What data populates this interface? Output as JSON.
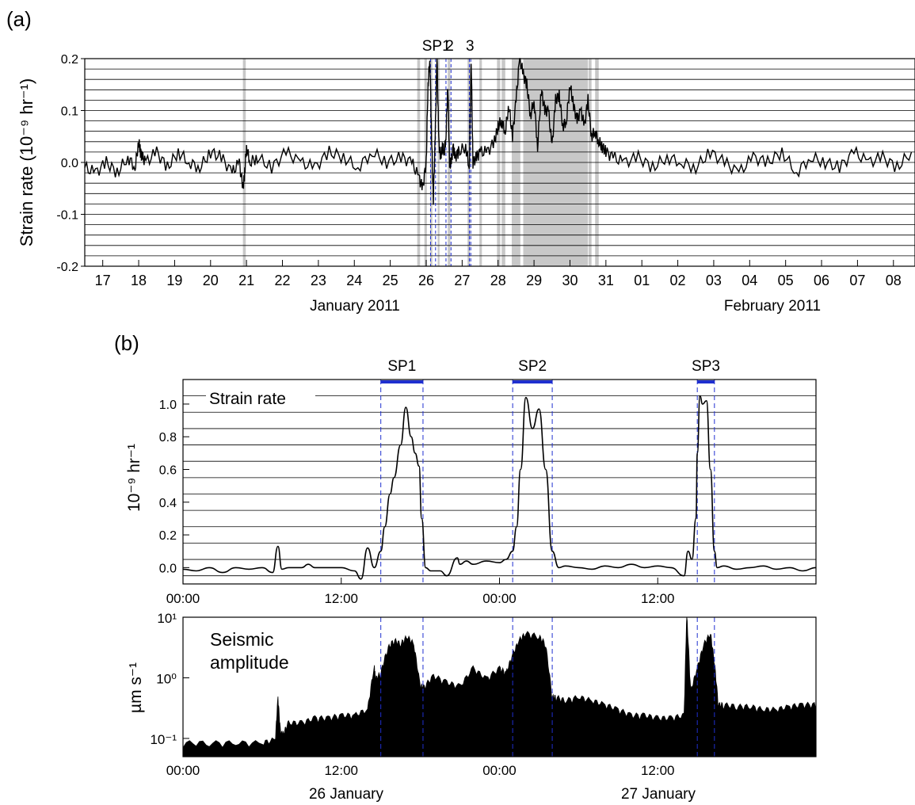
{
  "panels": {
    "a_label": "(a)",
    "b_label": "(b)"
  },
  "chart_data": [
    {
      "id": "panel-a",
      "type": "line",
      "ylabel": "Strain rate (10⁻⁹ hr⁻¹)",
      "ylim": [
        -0.2,
        0.2
      ],
      "yticks": [
        -0.2,
        -0.1,
        0.0,
        0.1,
        0.2
      ],
      "ytick_labels": [
        "-0.2",
        "-0.1",
        "0.0",
        "0.1",
        "0.2"
      ],
      "x_start_day": "2011-01-16T12:00",
      "xlim_days": [
        0,
        23.1
      ],
      "xtick_labels": [
        "17",
        "18",
        "19",
        "20",
        "21",
        "22",
        "23",
        "24",
        "25",
        "26",
        "27",
        "28",
        "29",
        "30",
        "31",
        "01",
        "02",
        "03",
        "04",
        "05",
        "06",
        "07",
        "08"
      ],
      "month_labels": [
        "January 2011",
        "February 2011"
      ],
      "grid": "horizontal",
      "period_labels": [
        "SP1",
        "2",
        "3"
      ],
      "shaded_intervals": [
        [
          4.4,
          4.48
        ],
        [
          9.25,
          9.33
        ],
        [
          9.45,
          9.52
        ],
        [
          9.61,
          9.67
        ],
        [
          9.82,
          9.87
        ],
        [
          10.1,
          10.17
        ],
        [
          10.65,
          10.72
        ],
        [
          10.98,
          11.05
        ],
        [
          11.47,
          11.56
        ],
        [
          11.6,
          11.7
        ],
        [
          11.88,
          12.12
        ],
        [
          12.2,
          13.6
        ],
        [
          13.6,
          14.0
        ],
        [
          14.02,
          14.1
        ],
        [
          14.2,
          14.3
        ]
      ],
      "slow_slip_markers": [
        [
          9.62,
          9.76
        ],
        [
          10.05,
          10.19
        ],
        [
          10.7,
          10.74
        ]
      ],
      "series": [
        {
          "color": "#000000",
          "x": [
            0.0,
            0.3,
            0.6,
            0.9,
            1.2,
            1.4,
            1.5,
            1.55,
            1.6,
            1.7,
            2.0,
            2.3,
            2.6,
            2.9,
            3.2,
            3.5,
            3.8,
            4.1,
            4.3,
            4.4,
            4.45,
            4.5,
            4.6,
            4.8,
            5.2,
            5.6,
            6.0,
            6.4,
            6.8,
            7.2,
            7.6,
            8.0,
            8.4,
            8.8,
            9.1,
            9.3,
            9.4,
            9.5,
            9.55,
            9.6,
            9.65,
            9.7,
            9.75,
            9.8,
            9.85,
            9.9,
            9.95,
            10.0,
            10.05,
            10.1,
            10.15,
            10.2,
            10.25,
            10.3,
            10.4,
            10.6,
            10.7,
            10.75,
            10.8,
            10.9,
            11.0,
            11.2,
            11.4,
            11.5,
            11.6,
            11.7,
            11.8,
            11.9,
            12.0,
            12.1,
            12.2,
            12.3,
            12.4,
            12.5,
            12.6,
            12.7,
            12.8,
            12.9,
            13.0,
            13.1,
            13.2,
            13.3,
            13.4,
            13.5,
            13.6,
            13.7,
            13.8,
            13.9,
            14.0,
            14.1,
            14.2,
            14.3,
            14.4,
            14.5,
            14.7,
            15.0,
            15.4,
            15.8,
            16.2,
            16.6,
            17.0,
            17.4,
            17.8,
            18.2,
            18.6,
            19.0,
            19.4,
            19.8,
            20.2,
            20.6,
            21.0,
            21.4,
            21.8,
            22.2,
            22.6,
            23.0
          ],
          "y": [
            -0.01,
            -0.02,
            0.0,
            -0.02,
            0.01,
            -0.01,
            0.04,
            0.02,
            0.01,
            0.0,
            0.02,
            -0.01,
            0.02,
            0.0,
            -0.01,
            0.02,
            0.01,
            -0.02,
            0.0,
            -0.05,
            -0.02,
            0.03,
            0.0,
            0.01,
            -0.01,
            0.02,
            0.0,
            -0.01,
            0.02,
            0.01,
            -0.01,
            0.02,
            0.0,
            0.01,
            0.0,
            -0.03,
            -0.05,
            0.0,
            0.15,
            0.2,
            0.05,
            -0.07,
            0.05,
            0.2,
            0.04,
            0.01,
            0.03,
            0.02,
            0.05,
            0.15,
            0.0,
            0.0,
            0.03,
            0.01,
            0.02,
            0.03,
            -0.01,
            0.2,
            0.0,
            0.01,
            0.02,
            0.02,
            0.04,
            0.07,
            0.08,
            0.06,
            0.11,
            0.05,
            0.12,
            0.2,
            0.17,
            0.15,
            0.09,
            0.12,
            0.03,
            0.14,
            0.1,
            0.1,
            0.03,
            0.12,
            0.13,
            0.07,
            0.08,
            0.15,
            0.11,
            0.08,
            0.1,
            0.07,
            0.12,
            0.05,
            0.06,
            0.04,
            0.03,
            0.02,
            0.01,
            0.0,
            0.01,
            -0.01,
            0.01,
            0.0,
            -0.01,
            0.02,
            0.0,
            -0.02,
            0.01,
            0.0,
            0.02,
            -0.02,
            0.01,
            0.0,
            -0.01,
            0.02,
            0.0,
            0.01,
            -0.01,
            0.02
          ]
        }
      ]
    },
    {
      "id": "panel-b-strain",
      "type": "line",
      "subtitle": "Strain rate",
      "ylabel": "10⁻⁹ hr⁻¹",
      "ylim": [
        -0.1,
        1.15
      ],
      "yticks": [
        0.0,
        0.2,
        0.4,
        0.6,
        0.8,
        1.0
      ],
      "ytick_labels": [
        "0.0",
        "0.2",
        "0.4",
        "0.6",
        "0.8",
        "1.0"
      ],
      "x_unit": "hours since 26 January 00:00",
      "xlim": [
        0,
        48
      ],
      "xticks": [
        0,
        12,
        24,
        36
      ],
      "xtick_labels": [
        "00:00",
        "12:00",
        "00:00",
        "12:00"
      ],
      "grid": "horizontal",
      "slow_slip_periods": [
        {
          "label": "SP1",
          "start": 15.0,
          "end": 18.2
        },
        {
          "label": "SP2",
          "start": 25.0,
          "end": 28.0
        },
        {
          "label": "SP3",
          "start": 39.0,
          "end": 40.3
        }
      ],
      "series": [
        {
          "color": "#000000",
          "x": [
            0,
            1,
            2,
            3,
            4,
            5,
            6,
            6.8,
            7.2,
            7.5,
            8,
            9,
            9.5,
            10,
            11,
            12,
            13,
            13.5,
            14,
            14.5,
            15,
            15.3,
            15.7,
            16,
            16.5,
            16.9,
            17.3,
            17.6,
            17.9,
            18.1,
            18.4,
            18.8,
            19.5,
            20,
            20.8,
            21,
            21.5,
            22,
            23,
            24,
            24.5,
            25,
            25.3,
            25.6,
            26,
            26.5,
            27,
            27.5,
            28,
            28.5,
            29,
            30,
            31,
            32,
            33,
            34,
            35,
            36,
            37,
            38,
            38.3,
            38.6,
            38.9,
            39,
            39.2,
            39.4,
            39.7,
            40,
            40.3,
            40.5,
            41,
            42,
            43,
            44,
            45,
            46,
            47,
            48
          ],
          "y": [
            -0.01,
            -0.02,
            0.0,
            -0.03,
            0.0,
            -0.01,
            0.0,
            -0.03,
            0.13,
            -0.01,
            0.0,
            0.0,
            0.02,
            0.0,
            0.0,
            0.0,
            -0.02,
            -0.07,
            0.12,
            0.0,
            0.1,
            0.25,
            0.45,
            0.55,
            0.75,
            0.98,
            0.8,
            0.7,
            0.62,
            0.3,
            0.0,
            -0.02,
            -0.02,
            -0.05,
            0.06,
            0.02,
            0.04,
            0.02,
            0.04,
            0.03,
            0.05,
            0.1,
            0.25,
            0.6,
            1.04,
            0.85,
            0.97,
            0.6,
            0.1,
            0.0,
            0.01,
            0.0,
            -0.01,
            0.01,
            0.0,
            0.02,
            0.0,
            0.01,
            0.0,
            -0.05,
            0.1,
            0.05,
            0.3,
            0.7,
            1.05,
            1.0,
            1.02,
            0.6,
            0.1,
            0.0,
            0.01,
            -0.01,
            0.0,
            0.01,
            -0.01,
            0.0,
            -0.02,
            0.0
          ]
        }
      ]
    },
    {
      "id": "panel-b-seismic",
      "type": "area",
      "subtitle": "Seismic amplitude",
      "ylabel": "µm s⁻¹",
      "yscale": "log",
      "ylim": [
        0.05,
        10
      ],
      "yticks": [
        0.1,
        1,
        10
      ],
      "ytick_labels": [
        "10⁻¹",
        "10⁰",
        "10¹"
      ],
      "x_unit": "hours since 26 January 00:00",
      "xlim": [
        0,
        48
      ],
      "xticks": [
        0,
        12,
        24,
        36
      ],
      "xtick_labels": [
        "00:00",
        "12:00",
        "00:00",
        "12:00"
      ],
      "day_labels": [
        "26 January",
        "27 January"
      ],
      "slow_slip_periods": [
        {
          "label": "SP1",
          "start": 15.0,
          "end": 18.2
        },
        {
          "label": "SP2",
          "start": 25.0,
          "end": 28.0
        },
        {
          "label": "SP3",
          "start": 39.0,
          "end": 40.3
        }
      ],
      "series": [
        {
          "color": "#000000",
          "x": [
            0,
            2,
            4,
            6,
            7,
            7.2,
            7.4,
            7.6,
            8,
            9,
            10,
            11,
            12,
            13,
            14,
            14.5,
            14.6,
            15,
            15.5,
            16,
            16.5,
            17,
            17.5,
            18,
            18.3,
            19,
            20,
            21,
            22,
            23,
            24,
            24.5,
            25,
            25.5,
            26,
            27,
            27.5,
            28,
            28.3,
            29,
            30,
            31,
            32,
            33,
            34,
            35,
            36,
            37,
            38,
            38.2,
            38.5,
            39,
            39.5,
            40,
            40.3,
            40.6,
            41,
            42,
            43,
            44,
            45,
            46,
            47,
            48
          ],
          "y": [
            0.07,
            0.07,
            0.07,
            0.07,
            0.08,
            0.4,
            0.1,
            0.1,
            0.15,
            0.15,
            0.18,
            0.18,
            0.2,
            0.2,
            0.25,
            1.3,
            0.8,
            1.0,
            2.5,
            3.5,
            3.0,
            4.0,
            3.0,
            0.6,
            0.6,
            0.9,
            0.7,
            0.6,
            1.2,
            0.8,
            1.2,
            1.0,
            2.0,
            3.5,
            4.5,
            4.0,
            3.0,
            0.4,
            0.4,
            0.35,
            0.4,
            0.35,
            0.3,
            0.25,
            0.2,
            0.2,
            0.18,
            0.18,
            0.2,
            10,
            0.5,
            1.2,
            3.0,
            4.5,
            1.5,
            0.3,
            0.3,
            0.28,
            0.28,
            0.25,
            0.25,
            0.28,
            0.3,
            0.3
          ]
        }
      ]
    }
  ]
}
